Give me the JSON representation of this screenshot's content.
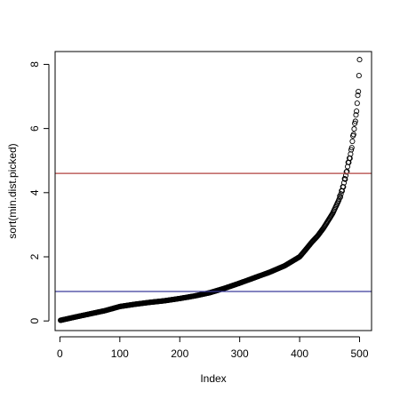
{
  "chart_data": {
    "type": "scatter",
    "title": "",
    "xlabel": "Index",
    "ylabel": "sort(min.dist.picked)",
    "xlim": [
      0,
      500
    ],
    "ylim": [
      0,
      8
    ],
    "x_ticks": [
      0,
      100,
      200,
      300,
      400,
      500
    ],
    "y_ticks": [
      0,
      2,
      4,
      6,
      8
    ],
    "grid": false,
    "n_points": 500,
    "series": [
      {
        "point_style": "open-circle",
        "color": "#000000",
        "x": [
          1,
          25,
          50,
          75,
          100,
          125,
          150,
          175,
          200,
          225,
          250,
          275,
          300,
          325,
          350,
          375,
          400,
          410,
          420,
          430,
          440,
          450,
          455,
          460,
          465,
          470,
          475,
          478,
          480,
          483,
          486,
          488,
          490,
          492,
          494,
          496,
          498,
          500
        ],
        "y": [
          0.02,
          0.12,
          0.22,
          0.32,
          0.45,
          0.52,
          0.58,
          0.63,
          0.7,
          0.78,
          0.88,
          1.02,
          1.18,
          1.35,
          1.52,
          1.72,
          2.0,
          2.22,
          2.45,
          2.65,
          2.9,
          3.2,
          3.35,
          3.55,
          3.75,
          4.0,
          4.4,
          4.6,
          4.8,
          5.05,
          5.3,
          5.6,
          5.85,
          6.1,
          6.4,
          6.8,
          7.2,
          8.1
        ]
      }
    ],
    "reference_lines": [
      {
        "type": "horizontal",
        "y": 4.6,
        "color": "#b0413e"
      },
      {
        "type": "horizontal",
        "y": 0.92,
        "color": "#3a3a9a"
      }
    ]
  }
}
